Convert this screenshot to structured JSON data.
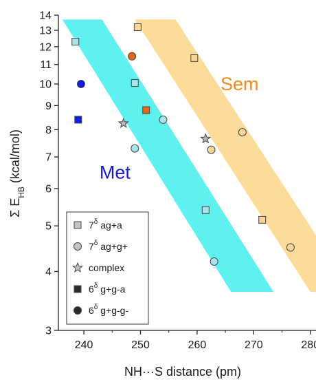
{
  "chart_data": {
    "type": "scatter",
    "xlabel": "NH···S distance (pm)",
    "ylabel": "Σ E_HB (kcal/mol)",
    "yscale": "log",
    "xlim": [
      235.5,
      281
    ],
    "ylim": [
      3,
      14
    ],
    "x_ticks": [
      240,
      250,
      260,
      270,
      280
    ],
    "y_ticks": [
      3,
      4,
      5,
      6,
      7,
      8,
      9,
      10,
      11,
      12,
      13,
      14
    ],
    "grid": false,
    "legend_position": "bottom-left",
    "annotations": [
      {
        "text": "Met",
        "x": 245.5,
        "y": 6.3,
        "color": "#1515e0"
      },
      {
        "text": "Sem",
        "x": 267.5,
        "y": 9.7,
        "color": "#f08a24"
      }
    ],
    "bands": [
      {
        "label": "Met",
        "color": "#5ff0f0",
        "polygon": [
          [
            236.2,
            13.7
          ],
          [
            243.2,
            13.7
          ],
          [
            273.5,
            3.62
          ],
          [
            266.0,
            3.62
          ]
        ]
      },
      {
        "label": "Sem",
        "color": "#fddc9a",
        "polygon": [
          [
            249.0,
            13.7
          ],
          [
            256.2,
            13.7
          ],
          [
            287.5,
            3.62
          ],
          [
            280.0,
            3.62
          ]
        ]
      }
    ],
    "series": [
      {
        "name": "ag+a",
        "marker": "square",
        "points": [
          {
            "x": 238.5,
            "y": 12.3,
            "color": "#a8e4ec"
          },
          {
            "x": 249.0,
            "y": 10.05,
            "color": "#a8e4ec"
          },
          {
            "x": 261.5,
            "y": 5.4,
            "color": "#a8e4ec"
          },
          {
            "x": 249.5,
            "y": 13.2,
            "color": "#f7d49a"
          },
          {
            "x": 259.5,
            "y": 11.35,
            "color": "#f7d49a"
          },
          {
            "x": 271.5,
            "y": 5.15,
            "color": "#f7d49a"
          }
        ]
      },
      {
        "name": "ag+g+",
        "marker": "circle",
        "points": [
          {
            "x": 249.0,
            "y": 7.3,
            "color": "#a8e4ec"
          },
          {
            "x": 254.0,
            "y": 8.4,
            "color": "#a8e4ec"
          },
          {
            "x": 263.0,
            "y": 4.2,
            "color": "#a8e4ec"
          },
          {
            "x": 262.5,
            "y": 7.25,
            "color": "#f7d49a"
          },
          {
            "x": 268.0,
            "y": 7.9,
            "color": "#f7d49a"
          },
          {
            "x": 276.5,
            "y": 4.5,
            "color": "#f7d49a"
          }
        ]
      },
      {
        "name": "complex",
        "marker": "star",
        "points": [
          {
            "x": 247.0,
            "y": 8.25,
            "color": "#b8b8b8"
          },
          {
            "x": 261.5,
            "y": 7.65,
            "color": "#b8b8b8"
          }
        ]
      },
      {
        "name": "g+g-a",
        "marker": "square",
        "points": [
          {
            "x": 239.0,
            "y": 8.4,
            "color": "#0f1ee6"
          },
          {
            "x": 251.0,
            "y": 8.8,
            "color": "#e06a1a"
          }
        ]
      },
      {
        "name": "g+g-g-",
        "marker": "circle",
        "points": [
          {
            "x": 239.5,
            "y": 10.0,
            "color": "#0f1ee6"
          },
          {
            "x": 248.5,
            "y": 11.45,
            "color": "#e06a1a"
          }
        ]
      }
    ],
    "legend": [
      {
        "prefix": "7",
        "sup": "δ",
        "suffix": " ag+a",
        "marker": "square",
        "color": "#c4c4c4"
      },
      {
        "prefix": "7",
        "sup": "δ",
        "suffix": " ag+g+",
        "marker": "circle",
        "color": "#c4c4c4"
      },
      {
        "prefix": "",
        "sup": "",
        "suffix": "complex",
        "marker": "star",
        "color": "#c4c4c4"
      },
      {
        "prefix": "6",
        "sup": "δ",
        "suffix": " g+g-a",
        "marker": "square",
        "color": "#2a2a2a"
      },
      {
        "prefix": "6",
        "sup": "δ",
        "suffix": " g+g-g-",
        "marker": "circle",
        "color": "#2a2a2a"
      }
    ]
  }
}
